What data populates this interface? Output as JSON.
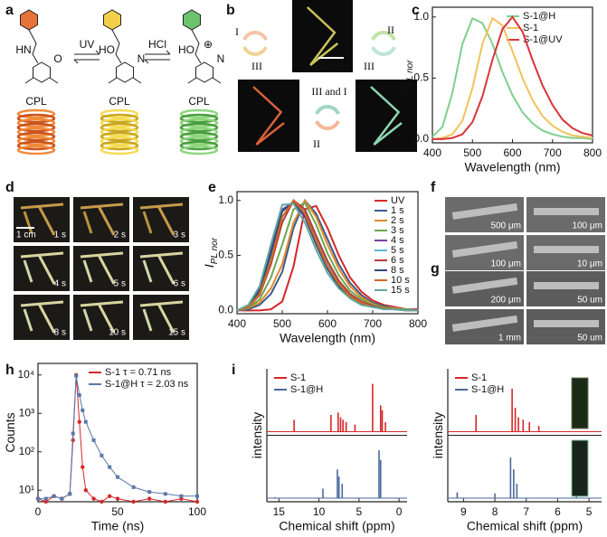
{
  "panel_labels": [
    "a",
    "b",
    "d",
    "f",
    "g"
  ],
  "scheme_a": {
    "arrows": [
      "UV",
      "HCl"
    ],
    "molecules": [
      {
        "labels": [
          "HN",
          "O"
        ]
      },
      {
        "labels": [
          "HO",
          "N"
        ]
      },
      {
        "labels": [
          "HO",
          "N",
          "⊕"
        ]
      }
    ],
    "cpl": [
      "CPL",
      "CPL",
      "CPL"
    ]
  },
  "panel_b": {
    "scale": "1 cm",
    "cycles": [
      {
        "labels": [
          "I",
          "III"
        ]
      },
      {
        "labels": [
          "II",
          "III"
        ]
      },
      {
        "labels": [
          "III and I",
          "II"
        ]
      }
    ]
  },
  "panel_d": {
    "scale": "1 cm",
    "times": [
      "1 s",
      "2 s",
      "3 s",
      "4 s",
      "5 s",
      "6 s",
      "8 s",
      "10 s",
      "15 s"
    ]
  },
  "panel_f": {
    "scale_labels": [
      "500 μm",
      "100 μm",
      "100 μm",
      "10 μm"
    ]
  },
  "panel_g": {
    "scale_labels": [
      "200 μm",
      "50 um",
      "1 mm",
      "50 um"
    ]
  },
  "chart_data": [
    {
      "type": "line",
      "panel": "c",
      "x_label": "Wavelength (nm)",
      "y_label": "I",
      "y_label_sub": "PL nor",
      "x": [
        400,
        425,
        450,
        475,
        500,
        525,
        550,
        575,
        600,
        625,
        650,
        675,
        700,
        725,
        750,
        775,
        800
      ],
      "xlim": [
        400,
        800
      ],
      "xticks": [
        400,
        500,
        600,
        700,
        800
      ],
      "ylim": [
        -0.03,
        1.08
      ],
      "yticks": [
        {
          "value": 0,
          "label": "0.0"
        },
        {
          "value": 0.5,
          "label": "0.5"
        },
        {
          "value": 1,
          "label": "1.0"
        }
      ],
      "legend": "upper right",
      "series": [
        {
          "name": "S-1@H",
          "color": "#7fcf8c",
          "values": [
            0.02,
            0.1,
            0.38,
            0.78,
            0.99,
            0.95,
            0.78,
            0.55,
            0.36,
            0.22,
            0.13,
            0.07,
            0.04,
            0.02,
            0.01,
            0.01,
            0
          ]
        },
        {
          "name": "S-1",
          "color": "#f0c35a",
          "values": [
            0,
            0.01,
            0.04,
            0.15,
            0.42,
            0.78,
            0.99,
            0.93,
            0.72,
            0.5,
            0.32,
            0.19,
            0.11,
            0.06,
            0.03,
            0.02,
            0.01
          ]
        },
        {
          "name": "S-1@UV",
          "color": "#d9343a",
          "values": [
            0,
            0,
            0.01,
            0.04,
            0.14,
            0.35,
            0.65,
            0.9,
            1.0,
            0.88,
            0.65,
            0.44,
            0.28,
            0.16,
            0.09,
            0.05,
            0.03
          ]
        }
      ]
    },
    {
      "type": "line",
      "panel": "e",
      "x_label": "Wavelength (nm)",
      "y_label": "I",
      "y_label_sub": "PL nor",
      "x": [
        400,
        425,
        450,
        475,
        500,
        525,
        550,
        575,
        600,
        625,
        650,
        675,
        700,
        725,
        750,
        775,
        800
      ],
      "xlim": [
        400,
        800
      ],
      "xticks": [
        400,
        500,
        600,
        700,
        800
      ],
      "ylim": [
        -0.03,
        1.08
      ],
      "yticks": [
        {
          "value": 0,
          "label": "0.0"
        },
        {
          "value": 0.5,
          "label": "0.5"
        },
        {
          "value": 1,
          "label": "1.0"
        }
      ],
      "legend": "upper right",
      "series": [
        {
          "name": "UV",
          "color": "#d62728",
          "values": [
            0,
            0,
            0,
            0.01,
            0.08,
            0.4,
            0.92,
            0.95,
            0.75,
            0.5,
            0.3,
            0.17,
            0.09,
            0.05,
            0.03,
            0.01,
            0.01
          ]
        },
        {
          "name": "1 s",
          "color": "#3c5a8c",
          "values": [
            0,
            0.01,
            0.05,
            0.15,
            0.35,
            0.75,
            1.0,
            0.88,
            0.65,
            0.42,
            0.25,
            0.14,
            0.07,
            0.04,
            0.02,
            0.01,
            0
          ]
        },
        {
          "name": "2 s",
          "color": "#e08a2c",
          "values": [
            0,
            0.02,
            0.07,
            0.2,
            0.42,
            0.8,
            1.0,
            0.85,
            0.6,
            0.38,
            0.22,
            0.12,
            0.06,
            0.03,
            0.02,
            0.01,
            0
          ]
        },
        {
          "name": "3 s",
          "color": "#6aa84f",
          "values": [
            0,
            0.02,
            0.1,
            0.3,
            0.6,
            0.92,
            0.98,
            0.78,
            0.52,
            0.32,
            0.18,
            0.1,
            0.05,
            0.03,
            0.01,
            0.01,
            0
          ]
        },
        {
          "name": "4 s",
          "color": "#7b3fa0",
          "values": [
            0,
            0.04,
            0.2,
            0.55,
            0.92,
            0.98,
            0.85,
            0.6,
            0.38,
            0.22,
            0.12,
            0.06,
            0.03,
            0.02,
            0.01,
            0,
            0
          ]
        },
        {
          "name": "5 s",
          "color": "#5bb8d6",
          "values": [
            0,
            0.03,
            0.16,
            0.48,
            0.85,
            1.0,
            0.9,
            0.65,
            0.42,
            0.25,
            0.14,
            0.07,
            0.04,
            0.02,
            0.01,
            0,
            0
          ]
        },
        {
          "name": "6 s",
          "color": "#b33a3a",
          "values": [
            0,
            0.03,
            0.14,
            0.42,
            0.8,
            1.0,
            0.92,
            0.68,
            0.45,
            0.27,
            0.15,
            0.08,
            0.04,
            0.02,
            0.01,
            0,
            0
          ]
        },
        {
          "name": "8 s",
          "color": "#2f4b7c",
          "values": [
            0,
            0.04,
            0.18,
            0.52,
            0.9,
            0.99,
            0.86,
            0.6,
            0.38,
            0.22,
            0.12,
            0.06,
            0.03,
            0.02,
            0.01,
            0,
            0
          ]
        },
        {
          "name": "10 s",
          "color": "#d2691e",
          "values": [
            0,
            0.03,
            0.15,
            0.45,
            0.85,
            1.0,
            0.88,
            0.63,
            0.4,
            0.24,
            0.13,
            0.07,
            0.03,
            0.02,
            0.01,
            0,
            0
          ]
        },
        {
          "name": "15 s",
          "color": "#5fa8a0",
          "values": [
            0,
            0.05,
            0.22,
            0.6,
            0.96,
            0.97,
            0.8,
            0.55,
            0.34,
            0.2,
            0.11,
            0.05,
            0.03,
            0.01,
            0.01,
            0,
            0
          ]
        }
      ]
    },
    {
      "type": "line",
      "panel": "h",
      "x_label": "Time (ns)",
      "y_label": "Counts",
      "log_y": true,
      "markers": true,
      "x": [
        0,
        5,
        10,
        15,
        20,
        22,
        24,
        26,
        28,
        30,
        35,
        40,
        45,
        50,
        60,
        70,
        80,
        90,
        100
      ],
      "xlim": [
        0,
        100
      ],
      "xticks": [
        0,
        50,
        100
      ],
      "ylim": [
        5,
        20000
      ],
      "yticks": [
        {
          "value": 10,
          "label": "10¹"
        },
        {
          "value": 100,
          "label": "10²"
        },
        {
          "value": 1000,
          "label": "10³"
        },
        {
          "value": 10000,
          "label": "10⁴"
        }
      ],
      "legend": "upper right",
      "series": [
        {
          "name": "S-1 τ = 0.71 ns",
          "color": "#d62728",
          "marker": "circle",
          "values": [
            6,
            5,
            7,
            6,
            8,
            200,
            10000,
            600,
            40,
            10,
            6,
            5,
            7,
            6,
            5,
            6,
            5,
            6,
            5
          ]
        },
        {
          "name": "S-1@H τ = 2.03 ns",
          "color": "#5a78a8",
          "marker": "square",
          "values": [
            6,
            6,
            7,
            6,
            8,
            300,
            9500,
            3000,
            1200,
            600,
            200,
            80,
            40,
            22,
            12,
            9,
            8,
            7,
            7
          ]
        }
      ]
    },
    {
      "type": "stem",
      "panel": "i",
      "x_label": "Chemical shift (ppm)",
      "y_label": "intensity",
      "xlim": [
        16.5,
        -1
      ],
      "xticks": [
        15,
        10,
        5,
        0
      ],
      "ylim": [
        0,
        1
      ],
      "legend": "upper left",
      "series": [
        {
          "name": "S-1",
          "color": "#d62728",
          "x": [
            13.1,
            8.5,
            7.6,
            7.3,
            7.0,
            6.6,
            5.5,
            3.3,
            2.3,
            2.1,
            1.7
          ],
          "values": [
            0.25,
            0.35,
            0.4,
            0.3,
            0.25,
            0.2,
            0.15,
            1.0,
            0.55,
            0.45,
            0.2
          ]
        },
        {
          "name": "S-1@H",
          "color": "#4a6a9a",
          "x": [
            15.5,
            9.5,
            7.7,
            7.5,
            7.1,
            2.5,
            2.3
          ],
          "values": [
            0.02,
            0.2,
            0.6,
            0.45,
            0.3,
            1.0,
            0.8
          ]
        }
      ]
    },
    {
      "type": "stem",
      "panel": "i",
      "x_label": "Chemical shift (ppm)",
      "y_label": "intensity",
      "xlim": [
        9.5,
        4.6
      ],
      "xticks": [
        9,
        8,
        7,
        6,
        5
      ],
      "ylim": [
        0,
        1
      ],
      "legend": "upper left",
      "series": [
        {
          "name": "S-1",
          "color": "#d62728",
          "x": [
            8.6,
            7.45,
            7.35,
            7.25,
            7.1,
            6.9,
            6.6
          ],
          "values": [
            0.35,
            0.9,
            0.5,
            0.3,
            0.25,
            0.2,
            0.12
          ]
        },
        {
          "name": "S-1@H",
          "color": "#4a6a9a",
          "x": [
            9.2,
            8.0,
            7.5,
            7.4,
            7.3,
            5.4
          ],
          "values": [
            0.12,
            0.1,
            0.85,
            0.6,
            0.3,
            0.12
          ]
        }
      ]
    }
  ]
}
